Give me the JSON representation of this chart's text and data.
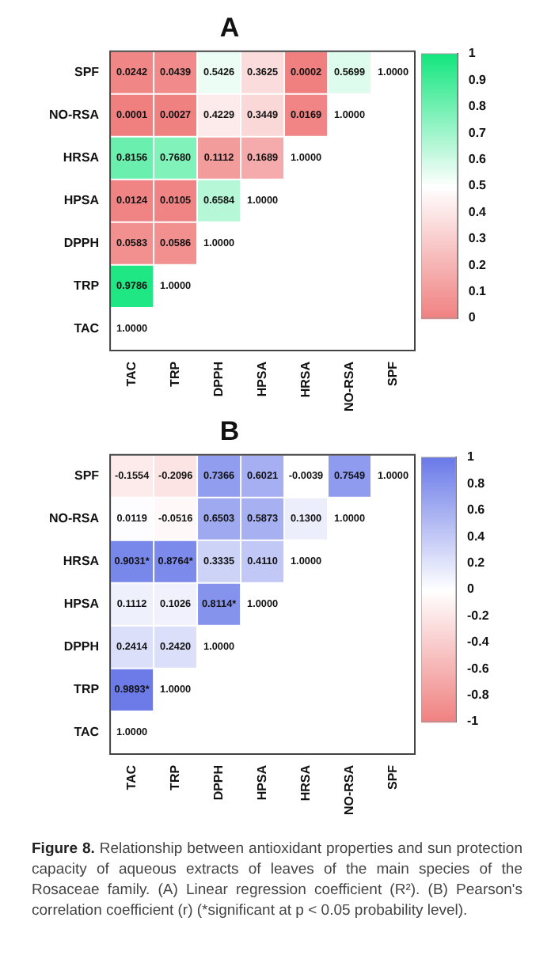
{
  "chart_data": [
    {
      "type": "heatmap",
      "title": "A",
      "categories": [
        "TAC",
        "TRP",
        "DPPH",
        "HPSA",
        "HRSA",
        "NO-RSA",
        "SPF"
      ],
      "y_categories": [
        "SPF",
        "NO-RSA",
        "HRSA",
        "HPSA",
        "DPPH",
        "TRP",
        "TAC"
      ],
      "cells": [
        [
          0.0242,
          0.0439,
          0.5426,
          0.3625,
          0.0002,
          0.5699,
          null
        ],
        [
          0.0001,
          0.0027,
          0.4229,
          0.3449,
          0.0169,
          null,
          null
        ],
        [
          0.8156,
          0.768,
          0.1112,
          0.1689,
          null,
          null,
          null
        ],
        [
          0.0124,
          0.0105,
          0.6584,
          null,
          null,
          null,
          null
        ],
        [
          0.0583,
          0.0586,
          null,
          null,
          null,
          null,
          null
        ],
        [
          0.9786,
          null,
          null,
          null,
          null,
          null,
          null
        ],
        [
          null,
          null,
          null,
          null,
          null,
          null,
          null
        ]
      ],
      "cell_labels": [
        [
          "0.0242",
          "0.0439",
          "0.5426",
          "0.3625",
          "0.0002",
          "0.5699",
          "1.0000"
        ],
        [
          "0.0001",
          "0.0027",
          "0.4229",
          "0.3449",
          "0.0169",
          "1.0000",
          null
        ],
        [
          "0.8156",
          "0.7680",
          "0.1112",
          "0.1689",
          "1.0000",
          null,
          null
        ],
        [
          "0.0124",
          "0.0105",
          "0.6584",
          "1.0000",
          null,
          null,
          null
        ],
        [
          "0.0583",
          "0.0586",
          "1.0000",
          null,
          null,
          null,
          null
        ],
        [
          "0.9786",
          "1.0000",
          null,
          null,
          null,
          null,
          null
        ],
        [
          "1.0000",
          null,
          null,
          null,
          null,
          null,
          null
        ]
      ],
      "clim": [
        0,
        1
      ],
      "cticks": [
        0,
        0.1,
        0.2,
        0.3,
        0.4,
        0.5,
        0.6,
        0.7,
        0.8,
        0.9,
        1
      ]
    },
    {
      "type": "heatmap",
      "title": "B",
      "categories": [
        "TAC",
        "TRP",
        "DPPH",
        "HPSA",
        "HRSA",
        "NO-RSA",
        "SPF"
      ],
      "y_categories": [
        "SPF",
        "NO-RSA",
        "HRSA",
        "HPSA",
        "DPPH",
        "TRP",
        "TAC"
      ],
      "cells": [
        [
          -0.1554,
          -0.2096,
          0.7366,
          0.6021,
          -0.0039,
          0.7549,
          null
        ],
        [
          0.0119,
          -0.0516,
          0.6503,
          0.5873,
          0.13,
          null,
          null
        ],
        [
          0.9031,
          0.8764,
          0.3335,
          0.411,
          null,
          null,
          null
        ],
        [
          0.1112,
          0.1026,
          0.8114,
          null,
          null,
          null,
          null
        ],
        [
          0.2414,
          0.242,
          null,
          null,
          null,
          null,
          null
        ],
        [
          0.9893,
          null,
          null,
          null,
          null,
          null,
          null
        ],
        [
          null,
          null,
          null,
          null,
          null,
          null,
          null
        ]
      ],
      "cell_labels": [
        [
          "-0.1554",
          "-0.2096",
          "0.7366",
          "0.6021",
          "-0.0039",
          "0.7549",
          "1.0000"
        ],
        [
          "0.0119",
          "-0.0516",
          "0.6503",
          "0.5873",
          "0.1300",
          "1.0000",
          null
        ],
        [
          "0.9031*",
          "0.8764*",
          "0.3335",
          "0.4110",
          "1.0000",
          null,
          null
        ],
        [
          "0.1112",
          "0.1026",
          "0.8114*",
          "1.0000",
          null,
          null,
          null
        ],
        [
          "0.2414",
          "0.2420",
          "1.0000",
          null,
          null,
          null,
          null
        ],
        [
          "0.9893*",
          "1.0000",
          null,
          null,
          null,
          null,
          null
        ],
        [
          "1.0000",
          null,
          null,
          null,
          null,
          null,
          null
        ]
      ],
      "clim": [
        -1,
        1
      ],
      "cticks": [
        -1,
        -0.8,
        -0.6,
        -0.4,
        -0.2,
        0,
        0.2,
        0.4,
        0.6,
        0.8,
        1
      ],
      "annotations": [
        "Figure 8.",
        "Relationship between antioxidant properties and sun protection capacity of aqueous extracts of leaves of the main species of the Rosaceae family. (A) Linear regression coefficient (R²). (B) Pearson's correlation coefficient (r) (*significant at p < 0.05 probability level)."
      ]
    }
  ]
}
